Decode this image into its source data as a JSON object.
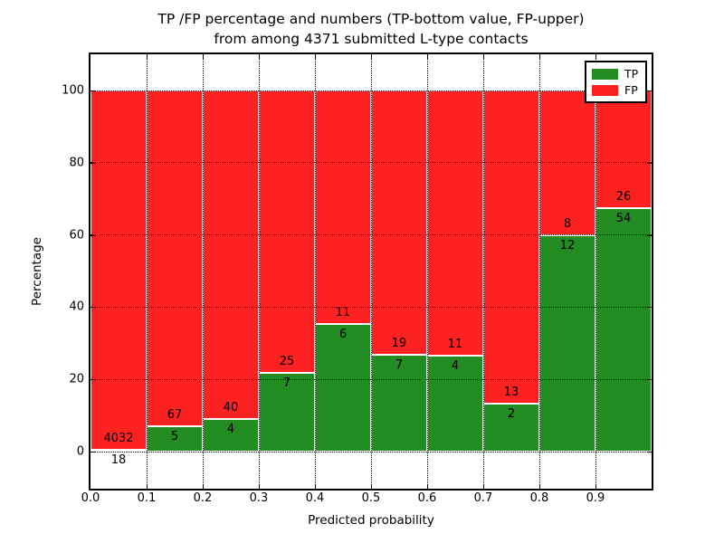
{
  "chart_data": {
    "type": "bar",
    "stacked": true,
    "title_line1": "TP /FP percentage and numbers (TP-bottom value, FP-upper)",
    "title_line2": "from among 4371 submitted L-type contacts",
    "xlabel": "Predicted probability",
    "ylabel": "Percentage",
    "total_contacts": 4371,
    "xlim": [
      0.0,
      1.0
    ],
    "ylim": [
      -10.3,
      110.1
    ],
    "grid": "dotted, both axes, drawn over bars",
    "legend_position": "upper right",
    "x_tick_labels": [
      "0.0",
      "0.1",
      "0.2",
      "0.3",
      "0.4",
      "0.5",
      "0.6",
      "0.7",
      "0.8",
      "0.9"
    ],
    "y_tick_values": [
      0,
      20,
      40,
      60,
      80,
      100
    ],
    "bar_width": 0.1,
    "categories": [
      "0.0-0.1",
      "0.1-0.2",
      "0.2-0.3",
      "0.3-0.4",
      "0.4-0.5",
      "0.5-0.6",
      "0.6-0.7",
      "0.7-0.8",
      "0.8-0.9",
      "0.9-1.0"
    ],
    "series": [
      {
        "name": "TP",
        "counts": [
          18,
          5,
          4,
          7,
          6,
          7,
          4,
          2,
          12,
          54
        ]
      },
      {
        "name": "FP",
        "counts": [
          4032,
          67,
          40,
          25,
          11,
          19,
          11,
          13,
          8,
          26
        ]
      }
    ],
    "tp_percent": [
      0.44,
      6.94,
      9.09,
      21.88,
      35.29,
      26.92,
      26.67,
      13.33,
      60.0,
      67.5
    ],
    "colors": {
      "tp": "#228b22",
      "fp": "#fd2222",
      "bar_edge": "#ffffff",
      "text": "#000000"
    },
    "legend": [
      {
        "label": "TP",
        "color": "#228b22"
      },
      {
        "label": "FP",
        "color": "#fd2222"
      }
    ]
  }
}
